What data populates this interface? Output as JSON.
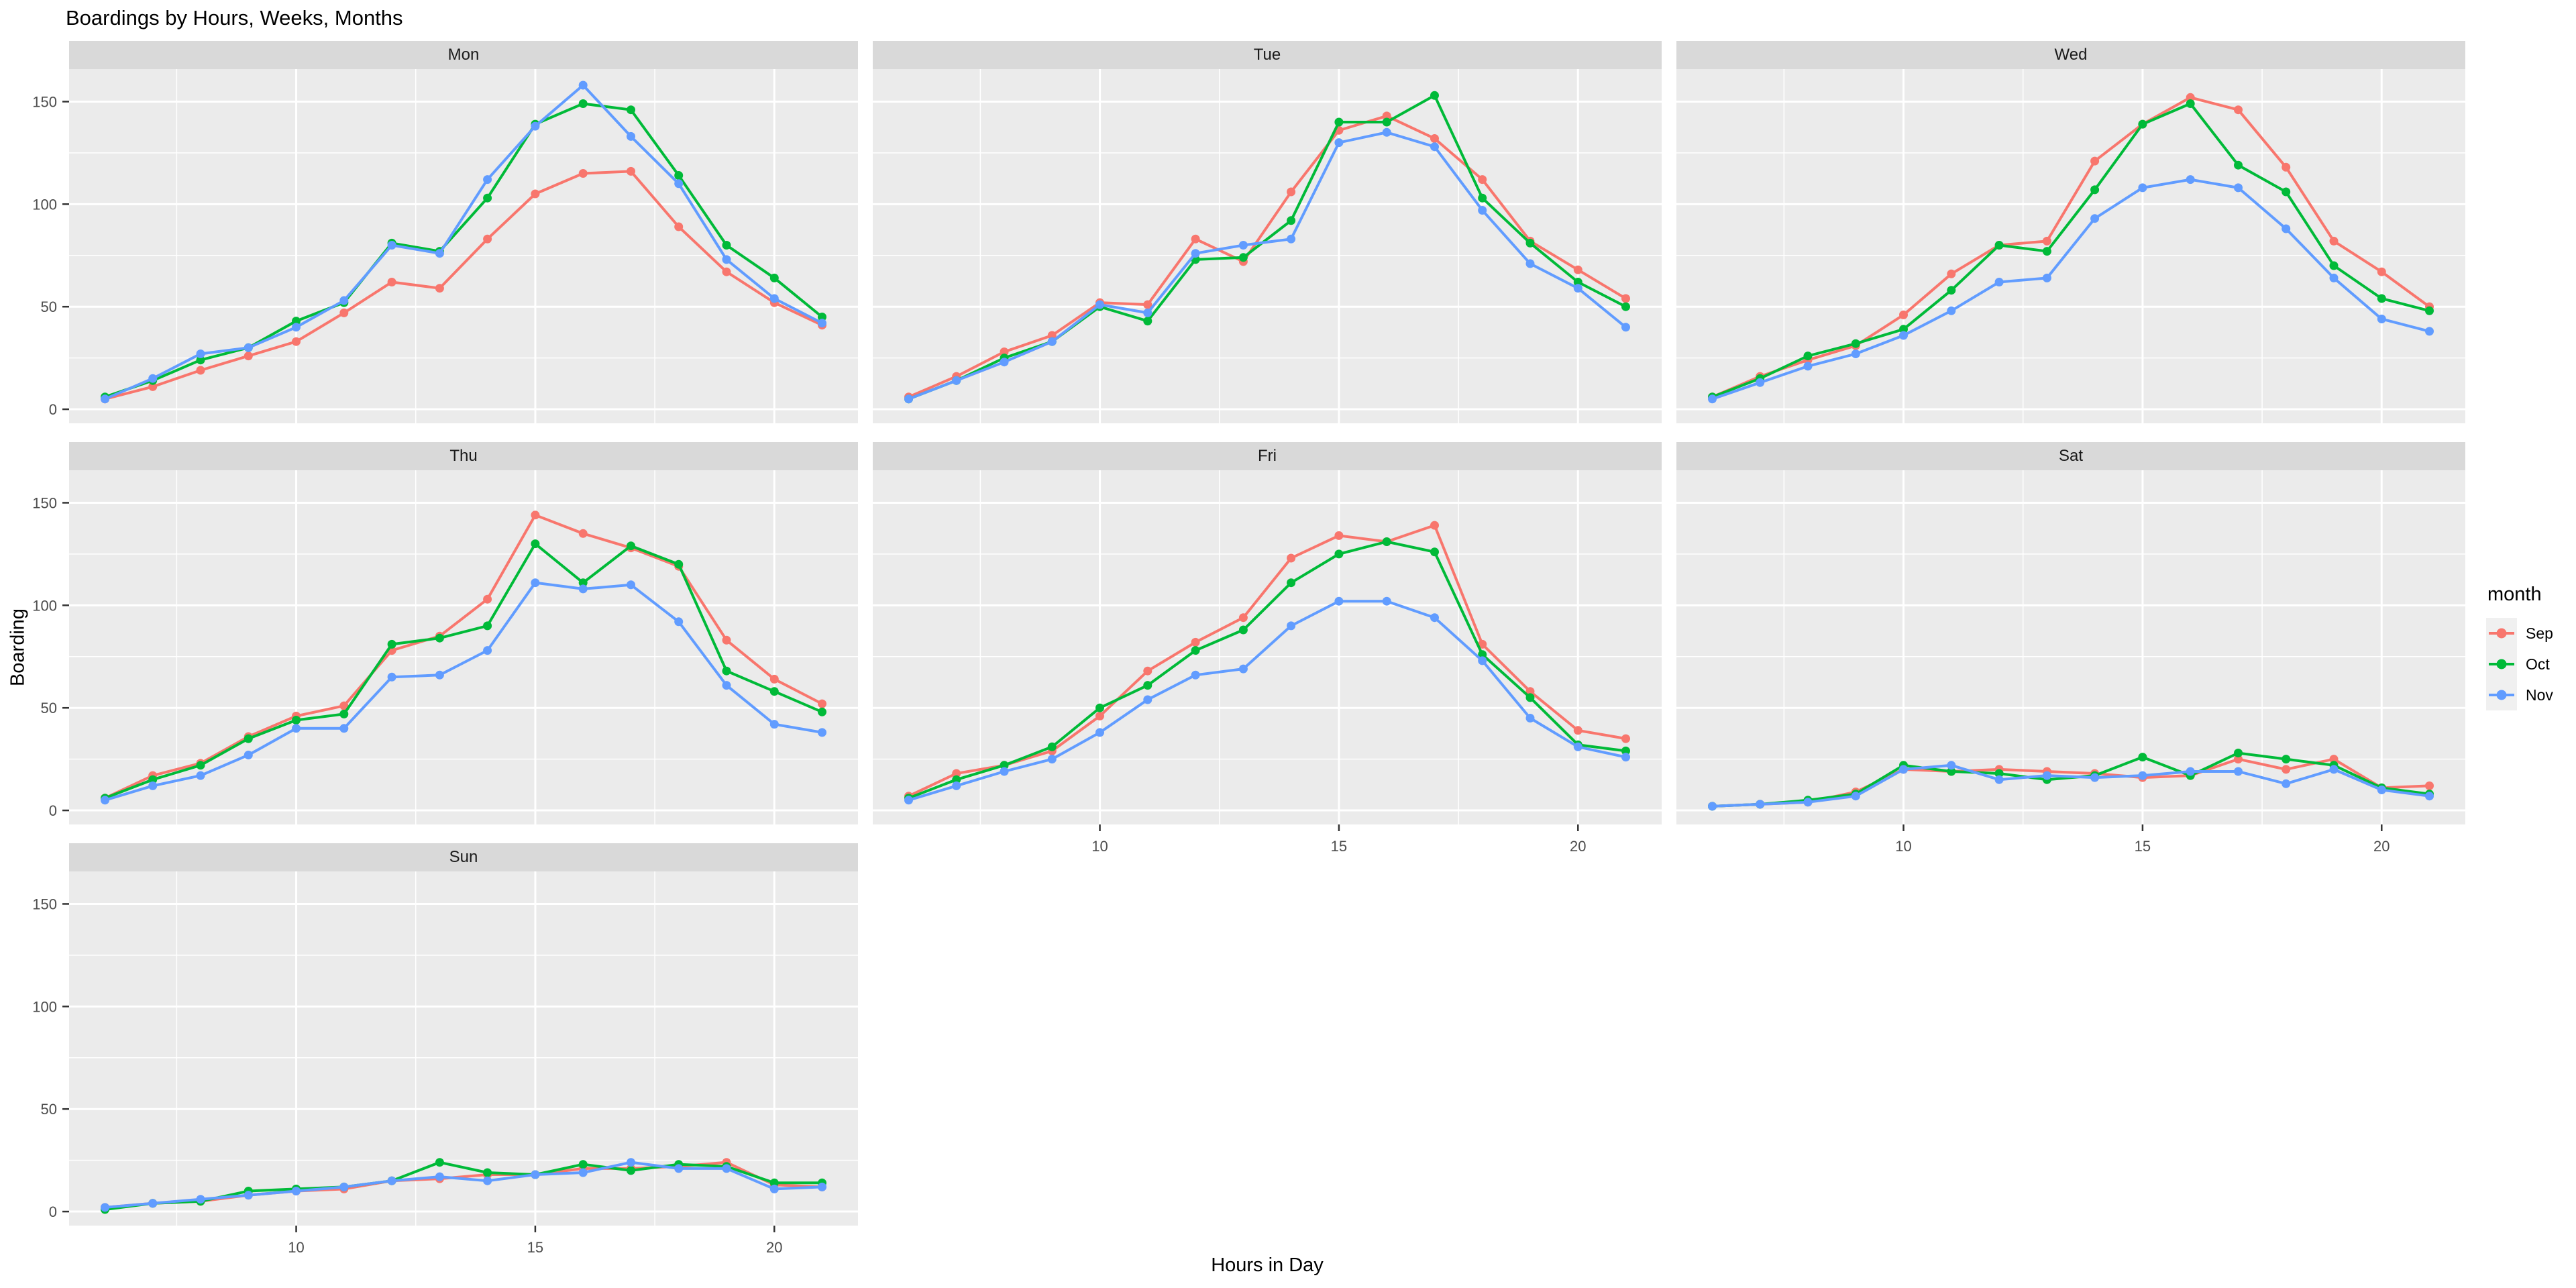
{
  "title": "Boardings by Hours, Weeks, Months",
  "axes": {
    "x_title": "Hours in Day",
    "y_title": "Boarding",
    "x_ticks": [
      10,
      15,
      20
    ],
    "y_ticks": [
      0,
      50,
      100,
      150
    ]
  },
  "legend": {
    "title": "month",
    "entries": [
      {
        "label": "Sep",
        "color": "#F8766D"
      },
      {
        "label": "Oct",
        "color": "#00BA38"
      },
      {
        "label": "Nov",
        "color": "#619CFF"
      }
    ]
  },
  "colors": {
    "panel_background": "#EBEBEB",
    "strip_background": "#D9D9D9",
    "gridline": "#FFFFFF",
    "axis_text": "#4D4D4D",
    "tick_mark": "#333333",
    "legend_key_background": "#F0F0F0"
  },
  "chart_data": {
    "type": "line",
    "title": "Boardings by Hours, Weeks, Months",
    "xlabel": "Hours in Day",
    "ylabel": "Boarding",
    "legend_title": "month",
    "legend_position": "right",
    "grid": "on",
    "x": [
      6,
      7,
      8,
      9,
      10,
      11,
      12,
      13,
      14,
      15,
      16,
      17,
      18,
      19,
      20,
      21
    ],
    "xlim": [
      5.25,
      21.75
    ],
    "ylim": [
      -6.85,
      165.85
    ],
    "x_major_gridlines": [
      10,
      15,
      20
    ],
    "x_minor_gridlines": [
      7.5,
      12.5,
      17.5
    ],
    "y_major_gridlines": [
      0,
      50,
      100,
      150
    ],
    "y_minor_gridlines": [
      25,
      75,
      125
    ],
    "facet_layout": [
      [
        "Mon",
        "Tue",
        "Wed"
      ],
      [
        "Thu",
        "Fri",
        "Sat"
      ],
      [
        "Sun",
        null,
        null
      ]
    ],
    "facets": [
      {
        "day": "Mon",
        "series": [
          {
            "name": "Sep",
            "values": [
              5,
              11,
              19,
              26,
              33,
              47,
              62,
              59,
              83,
              105,
              115,
              116,
              89,
              67,
              52,
              41
            ]
          },
          {
            "name": "Oct",
            "values": [
              6,
              14,
              24,
              30,
              43,
              52,
              81,
              77,
              103,
              139,
              149,
              146,
              114,
              80,
              64,
              45
            ]
          },
          {
            "name": "Nov",
            "values": [
              5,
              15,
              27,
              30,
              40,
              53,
              80,
              76,
              112,
              138,
              158,
              133,
              110,
              73,
              54,
              42
            ]
          }
        ]
      },
      {
        "day": "Tue",
        "series": [
          {
            "name": "Sep",
            "values": [
              6,
              16,
              28,
              36,
              52,
              51,
              83,
              72,
              106,
              136,
              143,
              132,
              112,
              82,
              68,
              54
            ]
          },
          {
            "name": "Oct",
            "values": [
              5,
              14,
              25,
              33,
              50,
              43,
              73,
              74,
              92,
              140,
              140,
              153,
              103,
              81,
              62,
              50
            ]
          },
          {
            "name": "Nov",
            "values": [
              5,
              14,
              23,
              33,
              51,
              47,
              76,
              80,
              83,
              130,
              135,
              128,
              97,
              71,
              59,
              40
            ]
          }
        ]
      },
      {
        "day": "Wed",
        "series": [
          {
            "name": "Sep",
            "values": [
              6,
              16,
              24,
              31,
              46,
              66,
              80,
              82,
              121,
              139,
              152,
              146,
              118,
              82,
              67,
              50
            ]
          },
          {
            "name": "Oct",
            "values": [
              6,
              15,
              26,
              32,
              39,
              58,
              80,
              77,
              107,
              139,
              149,
              119,
              106,
              70,
              54,
              48
            ]
          },
          {
            "name": "Nov",
            "values": [
              5,
              13,
              21,
              27,
              36,
              48,
              62,
              64,
              93,
              108,
              112,
              108,
              88,
              64,
              44,
              38
            ]
          }
        ]
      },
      {
        "day": "Thu",
        "series": [
          {
            "name": "Sep",
            "values": [
              6,
              17,
              23,
              36,
              46,
              51,
              78,
              85,
              103,
              144,
              135,
              128,
              119,
              83,
              64,
              52
            ]
          },
          {
            "name": "Oct",
            "values": [
              6,
              15,
              22,
              35,
              44,
              47,
              81,
              84,
              90,
              130,
              111,
              129,
              120,
              68,
              58,
              48
            ]
          },
          {
            "name": "Nov",
            "values": [
              5,
              12,
              17,
              27,
              40,
              40,
              65,
              66,
              78,
              111,
              108,
              110,
              92,
              61,
              42,
              38
            ]
          }
        ]
      },
      {
        "day": "Fri",
        "series": [
          {
            "name": "Sep",
            "values": [
              7,
              18,
              22,
              29,
              46,
              68,
              82,
              94,
              123,
              134,
              131,
              139,
              81,
              58,
              39,
              35
            ]
          },
          {
            "name": "Oct",
            "values": [
              6,
              15,
              22,
              31,
              50,
              61,
              78,
              88,
              111,
              125,
              131,
              126,
              76,
              55,
              32,
              29
            ]
          },
          {
            "name": "Nov",
            "values": [
              5,
              12,
              19,
              25,
              38,
              54,
              66,
              69,
              90,
              102,
              102,
              94,
              73,
              45,
              31,
              26
            ]
          }
        ]
      },
      {
        "day": "Sat",
        "series": [
          {
            "name": "Sep",
            "values": [
              2,
              3,
              4,
              9,
              20,
              19,
              20,
              19,
              18,
              16,
              17,
              25,
              20,
              25,
              11,
              12
            ]
          },
          {
            "name": "Oct",
            "values": [
              2,
              3,
              5,
              8,
              22,
              19,
              18,
              15,
              17,
              26,
              17,
              28,
              25,
              22,
              11,
              8
            ]
          },
          {
            "name": "Nov",
            "values": [
              2,
              3,
              4,
              7,
              20,
              22,
              15,
              17,
              16,
              17,
              19,
              19,
              13,
              20,
              10,
              7
            ]
          }
        ]
      },
      {
        "day": "Sun",
        "series": [
          {
            "name": "Sep",
            "values": [
              2,
              4,
              5,
              8,
              10,
              11,
              15,
              16,
              18,
              18,
              21,
              21,
              22,
              24,
              13,
              12
            ]
          },
          {
            "name": "Oct",
            "values": [
              1,
              4,
              5,
              10,
              11,
              12,
              15,
              24,
              19,
              18,
              23,
              20,
              23,
              22,
              14,
              14
            ]
          },
          {
            "name": "Nov",
            "values": [
              2,
              4,
              6,
              8,
              10,
              12,
              15,
              17,
              15,
              18,
              19,
              24,
              21,
              21,
              11,
              12
            ]
          }
        ]
      }
    ]
  }
}
